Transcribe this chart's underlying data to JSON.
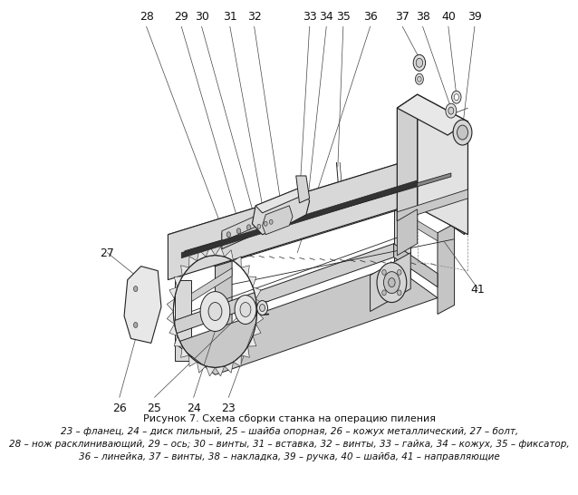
{
  "title": "Рисунок 7. Схема сборки станка на операцию пиления",
  "caption_line1": "23 – фланец, 24 – диск пильный, 25 – шайба опорная, 26 – кожух металлический, 27 – болт,",
  "caption_line2": "28 – нож расклинивающий, 29 – ось; 30 – винты, 31 – вставка, 32 – винты, 33 – гайка, 34 – кожух, 35 – фиксатор,",
  "caption_line3": "36 – линейка, 37 – винты, 38 – накладка, 39 – ручка, 40 – шайба, 41 – направляющие",
  "bg_color": "#ffffff",
  "lc": "#222222",
  "label_fontsize": 9,
  "title_fontsize": 8,
  "caption_fontsize": 7.5
}
